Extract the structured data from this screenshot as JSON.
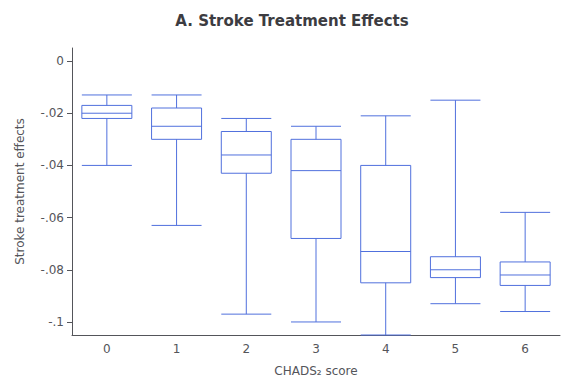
{
  "chart_data": {
    "type": "boxplot",
    "title": "A. Stroke Treatment Effects",
    "xlabel": "CHADS₂ score",
    "ylabel": "Stroke treatment effects",
    "categories": [
      0,
      1,
      2,
      3,
      4,
      5,
      6
    ],
    "boxes": [
      {
        "whislo": -0.04,
        "q1": -0.022,
        "med": -0.02,
        "q3": -0.017,
        "whishi": -0.013
      },
      {
        "whislo": -0.063,
        "q1": -0.03,
        "med": -0.025,
        "q3": -0.018,
        "whishi": -0.013
      },
      {
        "whislo": -0.097,
        "q1": -0.043,
        "med": -0.036,
        "q3": -0.027,
        "whishi": -0.022
      },
      {
        "whislo": -0.1,
        "q1": -0.068,
        "med": -0.042,
        "q3": -0.03,
        "whishi": -0.025
      },
      {
        "whislo": -0.105,
        "q1": -0.085,
        "med": -0.073,
        "q3": -0.04,
        "whishi": -0.021
      },
      {
        "whislo": -0.093,
        "q1": -0.083,
        "med": -0.08,
        "q3": -0.075,
        "whishi": -0.015
      },
      {
        "whislo": -0.096,
        "q1": -0.086,
        "med": -0.082,
        "q3": -0.077,
        "whishi": -0.058
      }
    ],
    "ylim": [
      -0.105,
      0.005
    ],
    "yticks": [
      0,
      {
        "value": -0.02,
        "label": "-.02"
      },
      {
        "value": -0.04,
        "label": "-.04"
      },
      {
        "value": -0.06,
        "label": "-.06"
      },
      {
        "value": -0.08,
        "label": "-.08"
      },
      {
        "value": -0.1,
        "label": "-.1"
      }
    ],
    "grid": false
  }
}
